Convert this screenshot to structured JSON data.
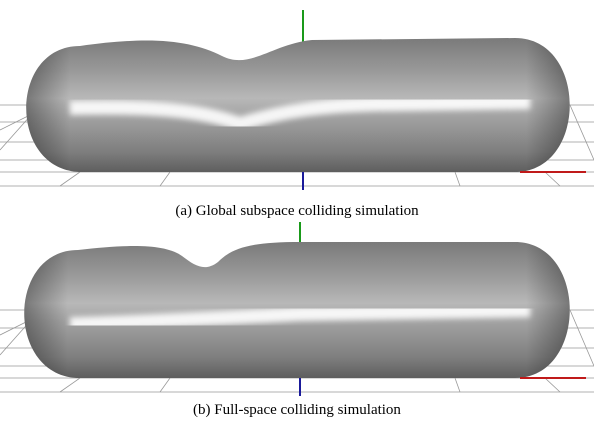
{
  "figure": {
    "captions": [
      "(a) Global subspace colliding simulation",
      "(b) Full-space colliding simulation"
    ]
  }
}
